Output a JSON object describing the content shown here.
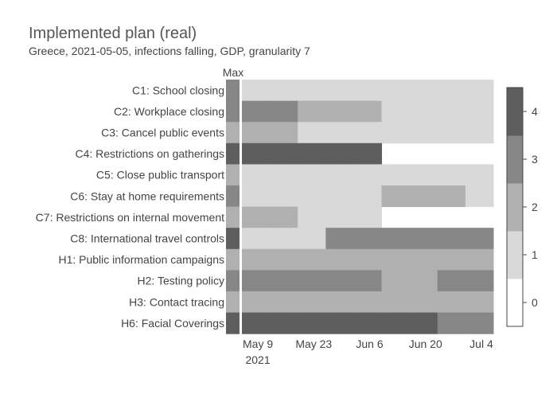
{
  "title": "Implemented plan (real)",
  "subtitle": "Greece, 2021-05-05, infections falling, GDP, granularity 7",
  "chart_data": {
    "type": "heatmap",
    "max_label": "Max",
    "policies": [
      "C1: School closing",
      "C2: Workplace closing",
      "C3: Cancel public events",
      "C4: Restrictions on gatherings",
      "C5: Close public transport",
      "C6: Stay at home requirements",
      "C7: Restrictions on internal movement",
      "C8: International travel controls",
      "H1: Public information campaigns",
      "H2: Testing policy",
      "H3: Contact tracing",
      "H6: Facial Coverings"
    ],
    "max_values": [
      3,
      3,
      2,
      4,
      2,
      3,
      2,
      4,
      2,
      3,
      2,
      4
    ],
    "x_ticks": [
      "May 9",
      "May 23",
      "Jun 6",
      "Jun 20",
      "Jul 4"
    ],
    "x_tick_sublabel": "2021",
    "periods": [
      "2021-05-05",
      "2021-05-12",
      "2021-05-19",
      "2021-05-26",
      "2021-06-02",
      "2021-06-09",
      "2021-06-16",
      "2021-06-23",
      "2021-06-30"
    ],
    "values": [
      [
        1,
        1,
        1,
        1,
        1,
        1,
        1,
        1,
        1
      ],
      [
        3,
        3,
        2,
        2,
        2,
        1,
        1,
        1,
        1
      ],
      [
        2,
        2,
        1,
        1,
        1,
        1,
        1,
        1,
        1
      ],
      [
        4,
        4,
        4,
        4,
        4,
        null,
        null,
        null,
        null
      ],
      [
        1,
        1,
        1,
        1,
        1,
        1,
        1,
        1,
        1
      ],
      [
        1,
        1,
        1,
        1,
        1,
        2,
        2,
        2,
        1
      ],
      [
        2,
        2,
        1,
        1,
        1,
        null,
        null,
        null,
        null
      ],
      [
        1,
        1,
        1,
        3,
        3,
        3,
        3,
        3,
        3
      ],
      [
        2,
        2,
        2,
        2,
        2,
        2,
        2,
        2,
        2
      ],
      [
        3,
        3,
        3,
        3,
        3,
        2,
        2,
        3,
        3
      ],
      [
        2,
        2,
        2,
        2,
        2,
        2,
        2,
        2,
        2
      ],
      [
        4,
        4,
        4,
        4,
        4,
        4,
        4,
        3,
        3
      ]
    ],
    "colorbar": {
      "ticks": [
        "0",
        "1",
        "2",
        "3",
        "4"
      ],
      "colors": [
        "#ffffff",
        "#d9d9d9",
        "#b0b0b0",
        "#878787",
        "#5e5e5e"
      ]
    }
  }
}
